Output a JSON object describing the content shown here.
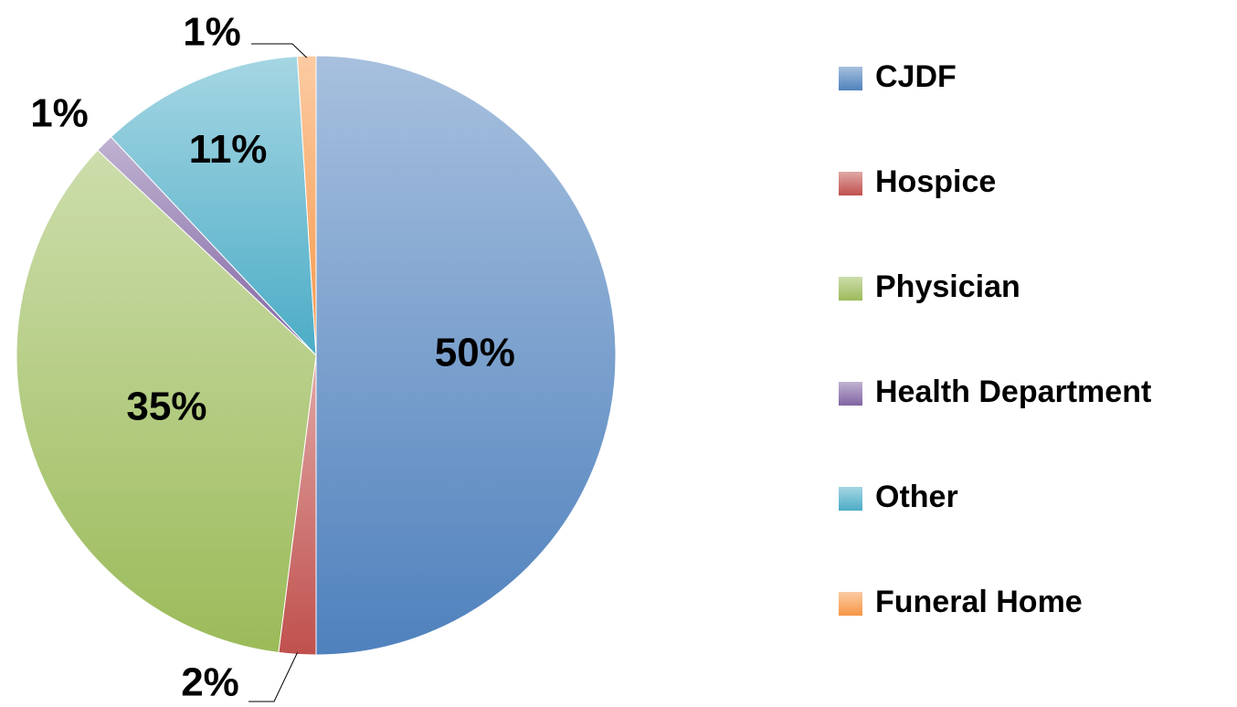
{
  "chart_data": {
    "type": "pie",
    "categories": [
      "CJDF",
      "Hospice",
      "Physician",
      "Health Department",
      "Other",
      "Funeral Home"
    ],
    "values": [
      50,
      2,
      35,
      1,
      11,
      1
    ],
    "value_labels": [
      "50%",
      "2%",
      "35%",
      "1%",
      "11%",
      "1%"
    ],
    "colors": [
      "#4f81bd",
      "#c0504d",
      "#9bbb59",
      "#8064a2",
      "#4bacc6",
      "#f79646"
    ],
    "legend": "right"
  }
}
